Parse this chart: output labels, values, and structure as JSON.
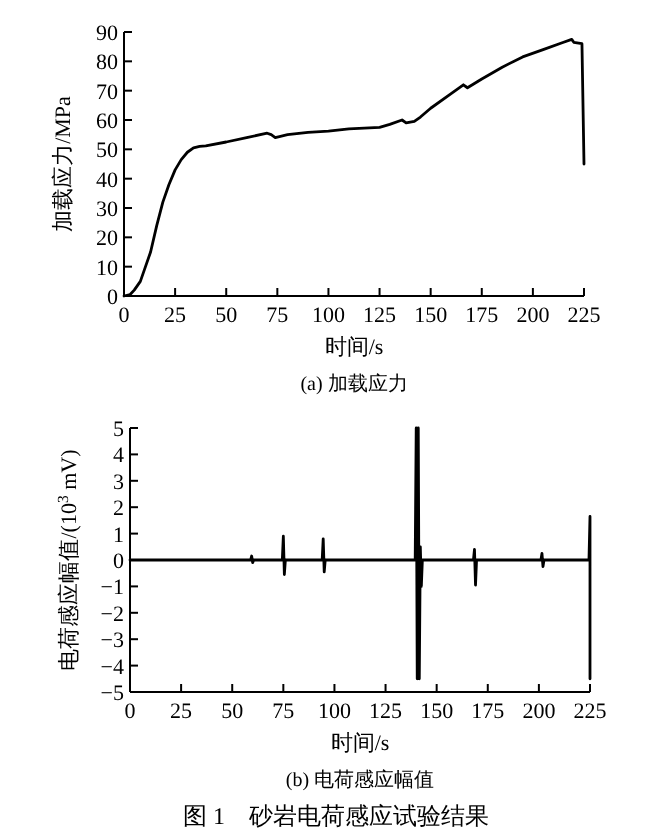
{
  "chart_data": [
    {
      "type": "line",
      "title": "(a) 加载应力",
      "xlabel": "时间/s",
      "ylabel": "加载应力/MPa",
      "xlim": [
        0,
        225
      ],
      "ylim": [
        0,
        90
      ],
      "xticks": [
        0,
        25,
        50,
        75,
        100,
        125,
        150,
        175,
        200,
        225
      ],
      "yticks": [
        0,
        10,
        20,
        30,
        40,
        50,
        60,
        70,
        80,
        90
      ],
      "series": [
        {
          "color": "#000000",
          "x": [
            0,
            3,
            5,
            8,
            10,
            13,
            16,
            19,
            22,
            25,
            28,
            31,
            34,
            37,
            40,
            50,
            60,
            70,
            72,
            74,
            80,
            90,
            100,
            110,
            125,
            130,
            136,
            138,
            142,
            145,
            150,
            160,
            166,
            168,
            175,
            185,
            195,
            205,
            215,
            219,
            220,
            224,
            225
          ],
          "values": [
            0,
            0.5,
            2,
            5,
            9,
            15,
            24,
            32,
            38,
            43,
            46.5,
            49,
            50.5,
            51,
            51.2,
            52.5,
            54,
            55.5,
            55,
            54,
            55,
            55.8,
            56.2,
            57,
            57.5,
            58.5,
            60,
            59,
            59.5,
            61,
            64,
            69,
            72,
            71,
            74,
            78,
            81.5,
            84,
            86.5,
            87.5,
            86.5,
            86,
            45
          ]
        }
      ]
    },
    {
      "type": "line",
      "title": "(b) 电荷感应幅值",
      "xlabel": "时间/s",
      "ylabel": "电荷感应幅值/(10$^{3}$ mV)",
      "xlim": [
        0,
        225
      ],
      "ylim": [
        -5,
        5
      ],
      "xticks": [
        0,
        25,
        50,
        75,
        100,
        125,
        150,
        175,
        200,
        225
      ],
      "yticks": [
        {
          "value": -5,
          "label": "−5"
        },
        {
          "value": -4,
          "label": "−4"
        },
        {
          "value": -3,
          "label": "−3"
        },
        {
          "value": -2,
          "label": "−2"
        },
        {
          "value": -1,
          "label": "−1"
        },
        0,
        1,
        2,
        3,
        4,
        5
      ],
      "annotations": [
        "图 1　砂岩电荷感应试验结果"
      ],
      "series": [
        {
          "color": "#000000",
          "x": [
            0,
            59,
            59.5,
            60,
            60.5,
            74.5,
            75,
            75.5,
            76,
            94,
            94.5,
            95,
            95.5,
            139.5,
            140,
            140.5,
            141,
            141.5,
            142,
            142.5,
            143,
            168,
            168.5,
            169,
            169.5,
            201,
            201.5,
            202,
            202.5,
            224.5,
            225,
            225
          ],
          "values": [
            0,
            0,
            0.15,
            -0.1,
            0,
            0,
            0.9,
            -0.55,
            0,
            0,
            0.8,
            -0.45,
            0,
            0,
            5,
            -4.5,
            5,
            -4.5,
            0.5,
            -1,
            0,
            0,
            0.4,
            -0.95,
            0,
            0,
            0.25,
            -0.25,
            0,
            0,
            1.65,
            -4.5
          ]
        }
      ]
    }
  ]
}
